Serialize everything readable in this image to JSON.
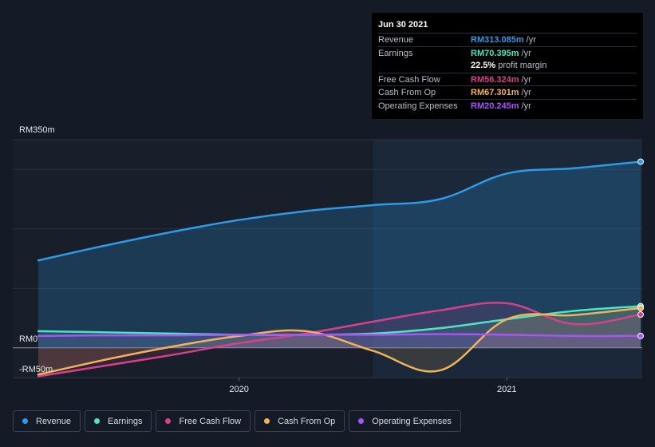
{
  "tooltip": {
    "date": "Jun 30 2021",
    "rows": [
      {
        "label": "Revenue",
        "value": "RM313.085m",
        "unit": "/yr",
        "color": "#2f9be6"
      },
      {
        "label": "Earnings",
        "value": "RM70.395m",
        "unit": "/yr",
        "color": "#50e3c2"
      },
      {
        "label": "",
        "value": "22.5%",
        "unit": "profit margin",
        "color": "#ffffff"
      },
      {
        "label": "Free Cash Flow",
        "value": "RM56.324m",
        "unit": "/yr",
        "color": "#d5418a"
      },
      {
        "label": "Cash From Op",
        "value": "RM67.301m",
        "unit": "/yr",
        "color": "#f0b35a"
      },
      {
        "label": "Operating Expenses",
        "value": "RM20.245m",
        "unit": "/yr",
        "color": "#a855f7"
      }
    ]
  },
  "legend": [
    {
      "label": "Revenue",
      "color": "#2f9be6"
    },
    {
      "label": "Earnings",
      "color": "#50e3c2"
    },
    {
      "label": "Free Cash Flow",
      "color": "#d5418a"
    },
    {
      "label": "Cash From Op",
      "color": "#f0b35a"
    },
    {
      "label": "Operating Expenses",
      "color": "#a855f7"
    }
  ],
  "chart_data": {
    "type": "line",
    "title": "",
    "xlabel": "",
    "ylabel": "",
    "ylim": [
      -50,
      350
    ],
    "xlim": [
      2019.25,
      2021.5
    ],
    "y_ticks": [
      {
        "value": 350,
        "label": "RM350m"
      },
      {
        "value": 0,
        "label": "RM0"
      },
      {
        "value": -50,
        "label": "-RM50m"
      }
    ],
    "x_ticks": [
      {
        "value": 2020.0,
        "label": "2020"
      },
      {
        "value": 2021.0,
        "label": "2021"
      }
    ],
    "gridlines": [
      300,
      200,
      100,
      0
    ],
    "forecast_start": 2020.5,
    "series": [
      {
        "name": "Revenue",
        "color": "#2f9be6",
        "x": [
          2019.25,
          2019.5,
          2019.75,
          2020.0,
          2020.25,
          2020.5,
          2020.75,
          2021.0,
          2021.25,
          2021.5
        ],
        "values": [
          147,
          172,
          195,
          215,
          230,
          240,
          250,
          293,
          302,
          313
        ]
      },
      {
        "name": "Earnings",
        "color": "#50e3c2",
        "x": [
          2019.25,
          2019.5,
          2019.75,
          2020.0,
          2020.25,
          2020.5,
          2020.75,
          2021.0,
          2021.25,
          2021.5
        ],
        "values": [
          28,
          26,
          24,
          22,
          22,
          24,
          33,
          48,
          62,
          70
        ]
      },
      {
        "name": "Free Cash Flow",
        "color": "#d5418a",
        "x": [
          2019.25,
          2019.5,
          2019.75,
          2020.0,
          2020.25,
          2020.5,
          2020.75,
          2021.0,
          2021.25,
          2021.5
        ],
        "values": [
          -48,
          -30,
          -12,
          8,
          24,
          44,
          63,
          75,
          40,
          56
        ]
      },
      {
        "name": "Cash From Op",
        "color": "#f0b35a",
        "x": [
          2019.25,
          2019.5,
          2019.75,
          2020.0,
          2020.25,
          2020.5,
          2020.75,
          2021.0,
          2021.25,
          2021.5
        ],
        "values": [
          -45,
          -20,
          2,
          20,
          28,
          -5,
          -38,
          48,
          55,
          67
        ]
      },
      {
        "name": "Operating Expenses",
        "color": "#a855f7",
        "x": [
          2019.25,
          2019.5,
          2019.75,
          2020.0,
          2020.25,
          2020.5,
          2020.75,
          2021.0,
          2021.25,
          2021.5
        ],
        "values": [
          20,
          21,
          21,
          22,
          22,
          22,
          23,
          22,
          20,
          20
        ]
      }
    ]
  }
}
